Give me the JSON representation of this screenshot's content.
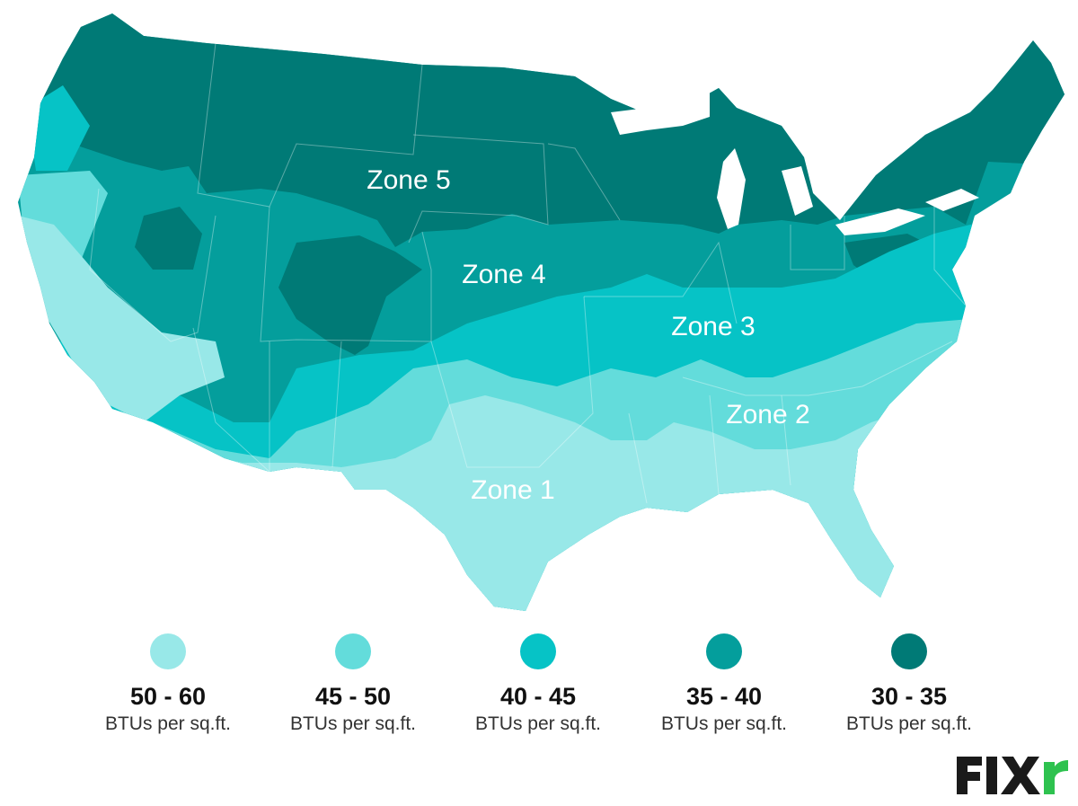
{
  "map": {
    "zones": [
      {
        "label": "Zone 5",
        "color": "#007a76"
      },
      {
        "label": "Zone 4",
        "color": "#049e9c"
      },
      {
        "label": "Zone 3",
        "color": "#06c3c6"
      },
      {
        "label": "Zone 2",
        "color": "#63dcdb"
      },
      {
        "label": "Zone 1",
        "color": "#98e8e8"
      }
    ]
  },
  "legend": [
    {
      "range": "50 - 60",
      "unit": "BTUs per sq.ft.",
      "color": "#98e8e8"
    },
    {
      "range": "45 - 50",
      "unit": "BTUs per sq.ft.",
      "color": "#63dcdb"
    },
    {
      "range": "40 - 45",
      "unit": "BTUs per sq.ft.",
      "color": "#06c3c6"
    },
    {
      "range": "35 - 40",
      "unit": "BTUs per sq.ft.",
      "color": "#049e9c"
    },
    {
      "range": "30 - 35",
      "unit": "BTUs per sq.ft.",
      "color": "#007a76"
    }
  ],
  "logo": {
    "text": "FIXr",
    "color": "#1a1a1a",
    "accent": "#2ec24f"
  }
}
